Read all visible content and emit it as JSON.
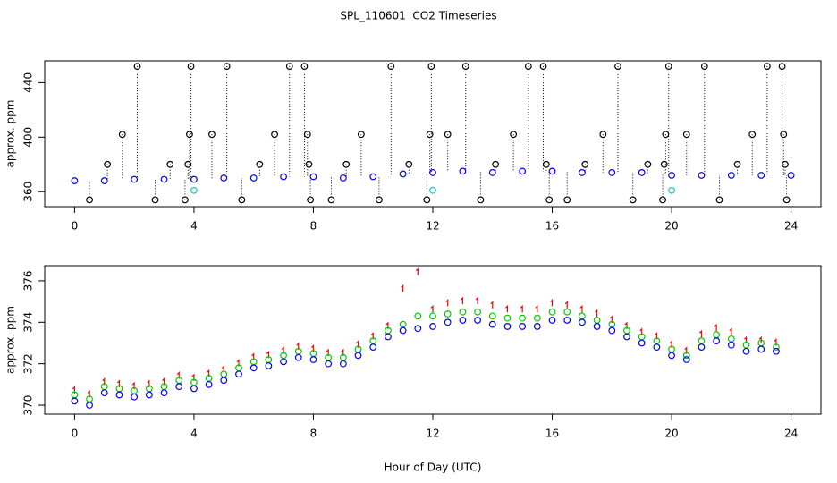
{
  "chart_data": [
    {
      "type": "scatter",
      "title": "SPL_110601  CO2 Timeseries",
      "ylabel": "approx. ppm",
      "xlim": [
        -1,
        25
      ],
      "xticks": [
        0,
        4,
        8,
        12,
        16,
        20,
        24
      ],
      "ylim": [
        349,
        456
      ],
      "yticks": [
        360,
        400,
        440
      ],
      "series": [
        {
          "color": "#0000ff",
          "marker": "circle",
          "x": [
            0,
            1,
            2,
            3,
            4,
            5,
            6,
            7,
            8,
            9,
            10,
            11,
            12,
            13,
            14,
            15,
            16,
            17,
            18,
            19,
            20,
            21,
            22,
            23,
            24
          ],
          "values": [
            368,
            368,
            369,
            369,
            369,
            370,
            370,
            371,
            371,
            370,
            371,
            373,
            374,
            375,
            374,
            375,
            375,
            374,
            374,
            374,
            372,
            372,
            372,
            372,
            372
          ]
        },
        {
          "color": "#000000",
          "marker": "circle",
          "drop_lines": true,
          "x": [
            0.5,
            1.1,
            1.6,
            2.1,
            2.7,
            3.2,
            3.7,
            3.9,
            3.85,
            3.8,
            4.6,
            5.1,
            5.6,
            6.2,
            6.7,
            7.2,
            7.7,
            7.8,
            7.9,
            7.85,
            8.6,
            9.1,
            9.6,
            10.2,
            10.6,
            11.2,
            11.8,
            11.9,
            11.95,
            12.5,
            13.1,
            13.6,
            14.1,
            14.7,
            15.2,
            15.7,
            15.8,
            15.9,
            16.5,
            17.1,
            17.7,
            18.2,
            18.7,
            19.2,
            19.7,
            19.75,
            19.8,
            19.9,
            20.5,
            21.1,
            21.6,
            22.2,
            22.7,
            23.2,
            23.7,
            23.75,
            23.8,
            23.85
          ],
          "values": [
            354,
            380,
            402,
            452,
            354,
            380,
            354,
            452,
            402,
            380,
            402,
            452,
            354,
            380,
            402,
            452,
            452,
            402,
            354,
            380,
            354,
            380,
            402,
            354,
            452,
            380,
            354,
            402,
            452,
            402,
            452,
            354,
            380,
            402,
            452,
            452,
            380,
            354,
            354,
            380,
            402,
            452,
            354,
            380,
            354,
            380,
            402,
            452,
            402,
            452,
            354,
            380,
            402,
            452,
            452,
            402,
            380,
            354
          ]
        },
        {
          "color": "#00cccc",
          "marker": "circle",
          "x": [
            4,
            12,
            20
          ],
          "values": [
            361,
            361,
            361
          ]
        }
      ]
    },
    {
      "type": "scatter",
      "ylabel": "approx. ppm",
      "xlabel": "Hour of Day (UTC)",
      "xlim": [
        -1,
        25
      ],
      "xticks": [
        0,
        4,
        8,
        12,
        16,
        20,
        24
      ],
      "ylim": [
        369.57,
        376.73
      ],
      "yticks": [
        370,
        372,
        374,
        376
      ],
      "series": [
        {
          "color": "#ff0000",
          "marker": "tick",
          "x": [
            0,
            0.5,
            1,
            1.5,
            2,
            2.5,
            3,
            3.5,
            4,
            4.5,
            5,
            5.5,
            6,
            6.5,
            7,
            7.5,
            8,
            8.5,
            9,
            9.5,
            10,
            10.5,
            11,
            11.5,
            12,
            12.5,
            13,
            13.5,
            14,
            14.5,
            15,
            15.5,
            16,
            16.5,
            17,
            17.5,
            18,
            18.5,
            19,
            19.5,
            20,
            20.5,
            21,
            21.5,
            22,
            22.5,
            23,
            23.5
          ],
          "values": [
            370.7,
            370.5,
            371.1,
            371.0,
            370.9,
            371.0,
            371.1,
            371.4,
            371.3,
            371.5,
            371.7,
            372.0,
            372.3,
            372.4,
            372.6,
            372.8,
            372.7,
            372.5,
            372.5,
            372.9,
            373.3,
            373.8,
            375.6,
            376.4,
            374.6,
            374.9,
            375.0,
            375.0,
            374.8,
            374.6,
            374.6,
            374.6,
            374.9,
            374.8,
            374.6,
            374.4,
            374.1,
            373.8,
            373.5,
            373.3,
            372.9,
            372.6,
            373.4,
            373.7,
            373.5,
            373.1,
            373.1,
            373.0
          ]
        },
        {
          "color": "#00cc00",
          "marker": "circle",
          "x": [
            0,
            0.5,
            1,
            1.5,
            2,
            2.5,
            3,
            3.5,
            4,
            4.5,
            5,
            5.5,
            6,
            6.5,
            7,
            7.5,
            8,
            8.5,
            9,
            9.5,
            10,
            10.5,
            11,
            11.5,
            12,
            12.5,
            13,
            13.5,
            14,
            14.5,
            15,
            15.5,
            16,
            16.5,
            17,
            17.5,
            18,
            18.5,
            19,
            19.5,
            20,
            20.5,
            21,
            21.5,
            22,
            22.5,
            23,
            23.5
          ],
          "values": [
            370.5,
            370.3,
            370.9,
            370.8,
            370.7,
            370.8,
            370.9,
            371.2,
            371.1,
            371.3,
            371.5,
            371.8,
            372.1,
            372.2,
            372.4,
            372.6,
            372.5,
            372.3,
            372.3,
            372.7,
            373.1,
            373.6,
            373.9,
            374.3,
            374.3,
            374.4,
            374.5,
            374.5,
            374.3,
            374.2,
            374.2,
            374.2,
            374.5,
            374.5,
            374.3,
            374.1,
            373.9,
            373.6,
            373.3,
            373.1,
            372.7,
            372.4,
            373.1,
            373.4,
            373.2,
            372.9,
            373.0,
            372.8
          ]
        },
        {
          "color": "#0000ff",
          "marker": "circle",
          "x": [
            0,
            0.5,
            1,
            1.5,
            2,
            2.5,
            3,
            3.5,
            4,
            4.5,
            5,
            5.5,
            6,
            6.5,
            7,
            7.5,
            8,
            8.5,
            9,
            9.5,
            10,
            10.5,
            11,
            11.5,
            12,
            12.5,
            13,
            13.5,
            14,
            14.5,
            15,
            15.5,
            16,
            16.5,
            17,
            17.5,
            18,
            18.5,
            19,
            19.5,
            20,
            20.5,
            21,
            21.5,
            22,
            22.5,
            23,
            23.5
          ],
          "values": [
            370.2,
            370.0,
            370.6,
            370.5,
            370.4,
            370.5,
            370.6,
            370.9,
            370.8,
            371.0,
            371.2,
            371.5,
            371.8,
            371.9,
            372.1,
            372.3,
            372.2,
            372.0,
            372.0,
            372.4,
            372.8,
            373.3,
            373.6,
            373.7,
            373.8,
            374.0,
            374.1,
            374.1,
            373.9,
            373.8,
            373.8,
            373.8,
            374.1,
            374.1,
            374.0,
            373.8,
            373.6,
            373.3,
            373.0,
            372.8,
            372.4,
            372.2,
            372.8,
            373.1,
            372.9,
            372.6,
            372.7,
            372.6
          ]
        }
      ]
    }
  ]
}
